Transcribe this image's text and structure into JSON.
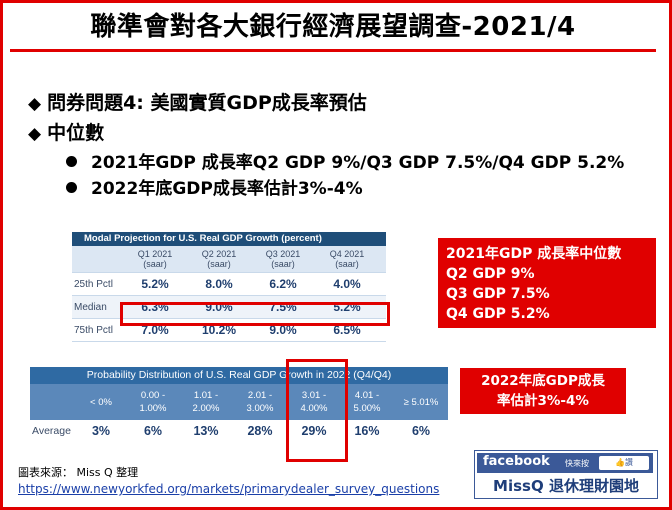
{
  "title": "聯準會對各大銀行經濟展望調查-2021/4",
  "bullets": [
    {
      "marker": "◆",
      "text": "問券問題4: 美國實質GDP成長率預估"
    },
    {
      "marker": "◆",
      "text": "中位數"
    }
  ],
  "subs": [
    "2021年GDP 成長率Q2 GDP 9%/Q3 GDP 7.5%/Q4 GDP 5.2%",
    "2022年底GDP成長率估計3%-4%"
  ],
  "table1": {
    "title": "Modal Projection for U.S. Real GDP Growth (percent)",
    "cols": [
      {
        "q": "Q1 2021",
        "s": "(saar)"
      },
      {
        "q": "Q2 2021",
        "s": "(saar)"
      },
      {
        "q": "Q3 2021",
        "s": "(saar)"
      },
      {
        "q": "Q4 2021",
        "s": "(saar)"
      }
    ],
    "rows": [
      {
        "label": "25th Pctl",
        "values": [
          "5.2%",
          "8.0%",
          "6.2%",
          "4.0%"
        ]
      },
      {
        "label": "Median",
        "values": [
          "6.3%",
          "9.0%",
          "7.5%",
          "5.2%"
        ]
      },
      {
        "label": "75th Pctl",
        "values": [
          "7.0%",
          "10.2%",
          "9.0%",
          "6.5%"
        ]
      }
    ]
  },
  "table2": {
    "title": "Probability Distribution of U.S. Real GDP Growth in 2022 (Q4/Q4)",
    "ranges": [
      {
        "a": "< 0%",
        "b": ""
      },
      {
        "a": "0.00 -",
        "b": "1.00%"
      },
      {
        "a": "1.01 -",
        "b": "2.00%"
      },
      {
        "a": "2.01 -",
        "b": "3.00%"
      },
      {
        "a": "3.01 -",
        "b": "4.00%"
      },
      {
        "a": "4.01 -",
        "b": "5.00%"
      },
      {
        "a": "≥ 5.01%",
        "b": ""
      }
    ],
    "row_label": "Average",
    "values": [
      "3%",
      "6%",
      "13%",
      "28%",
      "29%",
      "16%",
      "6%"
    ]
  },
  "note1": [
    "2021年GDP 成長率中位數",
    "Q2 GDP 9%",
    "Q3 GDP 7.5%",
    "Q4 GDP 5.2%"
  ],
  "note2": [
    "2022年底GDP成長",
    "率估計3%-4%"
  ],
  "source": "圖表來源： Miss Q 整理",
  "url": "https://www.newyorkfed.org/markets/primarydealer_survey_questions",
  "logo": {
    "fb": "facebook",
    "small": "快來按",
    "like": "讚",
    "name": "MissQ 退休理財園地"
  },
  "colors": {
    "accent": "#e00000",
    "table_head": "#1f4e79",
    "fb": "#3b5998"
  }
}
